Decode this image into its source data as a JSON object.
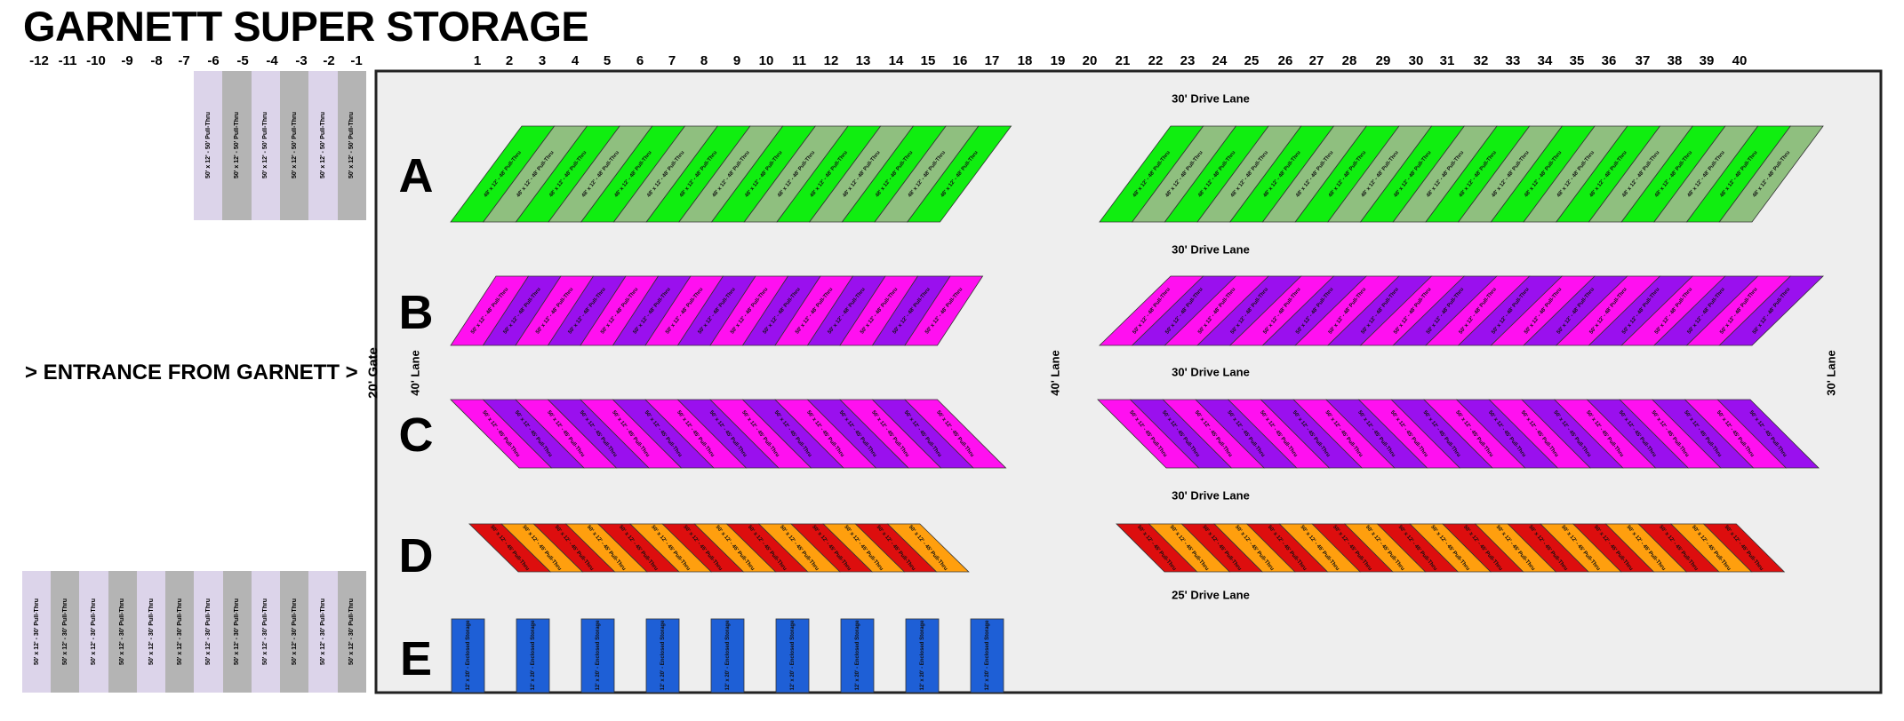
{
  "title": "GARNETT SUPER STORAGE",
  "entrance_text": "> ENTRANCE FROM GARNETT >",
  "gate_label": "20' Gate",
  "column_numbers": [
    "-12",
    "-11",
    "-10",
    "-9",
    "-8",
    "-7",
    "-6",
    "-5",
    "-4",
    "-3",
    "-2",
    "-1",
    "1",
    "2",
    "3",
    "4",
    "5",
    "6",
    "7",
    "8",
    "9",
    "10",
    "11",
    "12",
    "13",
    "14",
    "15",
    "16",
    "17",
    "18",
    "19",
    "20",
    "21",
    "22",
    "23",
    "24",
    "25",
    "26",
    "27",
    "28",
    "29",
    "30",
    "31",
    "32",
    "33",
    "34",
    "35",
    "36",
    "37",
    "38",
    "39",
    "40"
  ],
  "row_labels": [
    "A",
    "B",
    "C",
    "D",
    "E"
  ],
  "lane_labels": {
    "drive_lane_1": "30' Drive Lane",
    "drive_lane_2": "30' Drive Lane",
    "drive_lane_3": "30' Drive Lane",
    "drive_lane_4": "30' Drive Lane",
    "drive_lane_5": "25' Drive Lane",
    "left_lane": "40' Lane",
    "middle_lane": "40' Lane",
    "right_lane": "30' Lane"
  },
  "unit_texts": {
    "top_left": "50' x 12' - 50' Pull-Thru",
    "bottom_left": "50' x 12' - 30' Pull-Thru",
    "row_a": "48' x 12' - 48' Pull-Thru",
    "row_b": "50' x 12' - 48' Pull-Thru",
    "row_c": "50' x 12' - 45' Pull-Thru",
    "row_d": "50' x 12' - 45' Pull-Thru",
    "row_e": "12' x 20' - Enclosed Storage"
  },
  "colors": {
    "lot_bg": "#eeeeee",
    "lot_border": "#222222",
    "row_a": [
      "#10ee10",
      "#8fbf7f"
    ],
    "row_b": [
      "#ff10f0",
      "#9a10ee"
    ],
    "row_c": [
      "#ff10f0",
      "#9a10ee"
    ],
    "row_d": [
      "#dd0e0e",
      "#ff9f0e"
    ],
    "row_e": "#1e5fd6",
    "left_units": [
      "#dcd4ea",
      "#b4b4b4"
    ]
  }
}
